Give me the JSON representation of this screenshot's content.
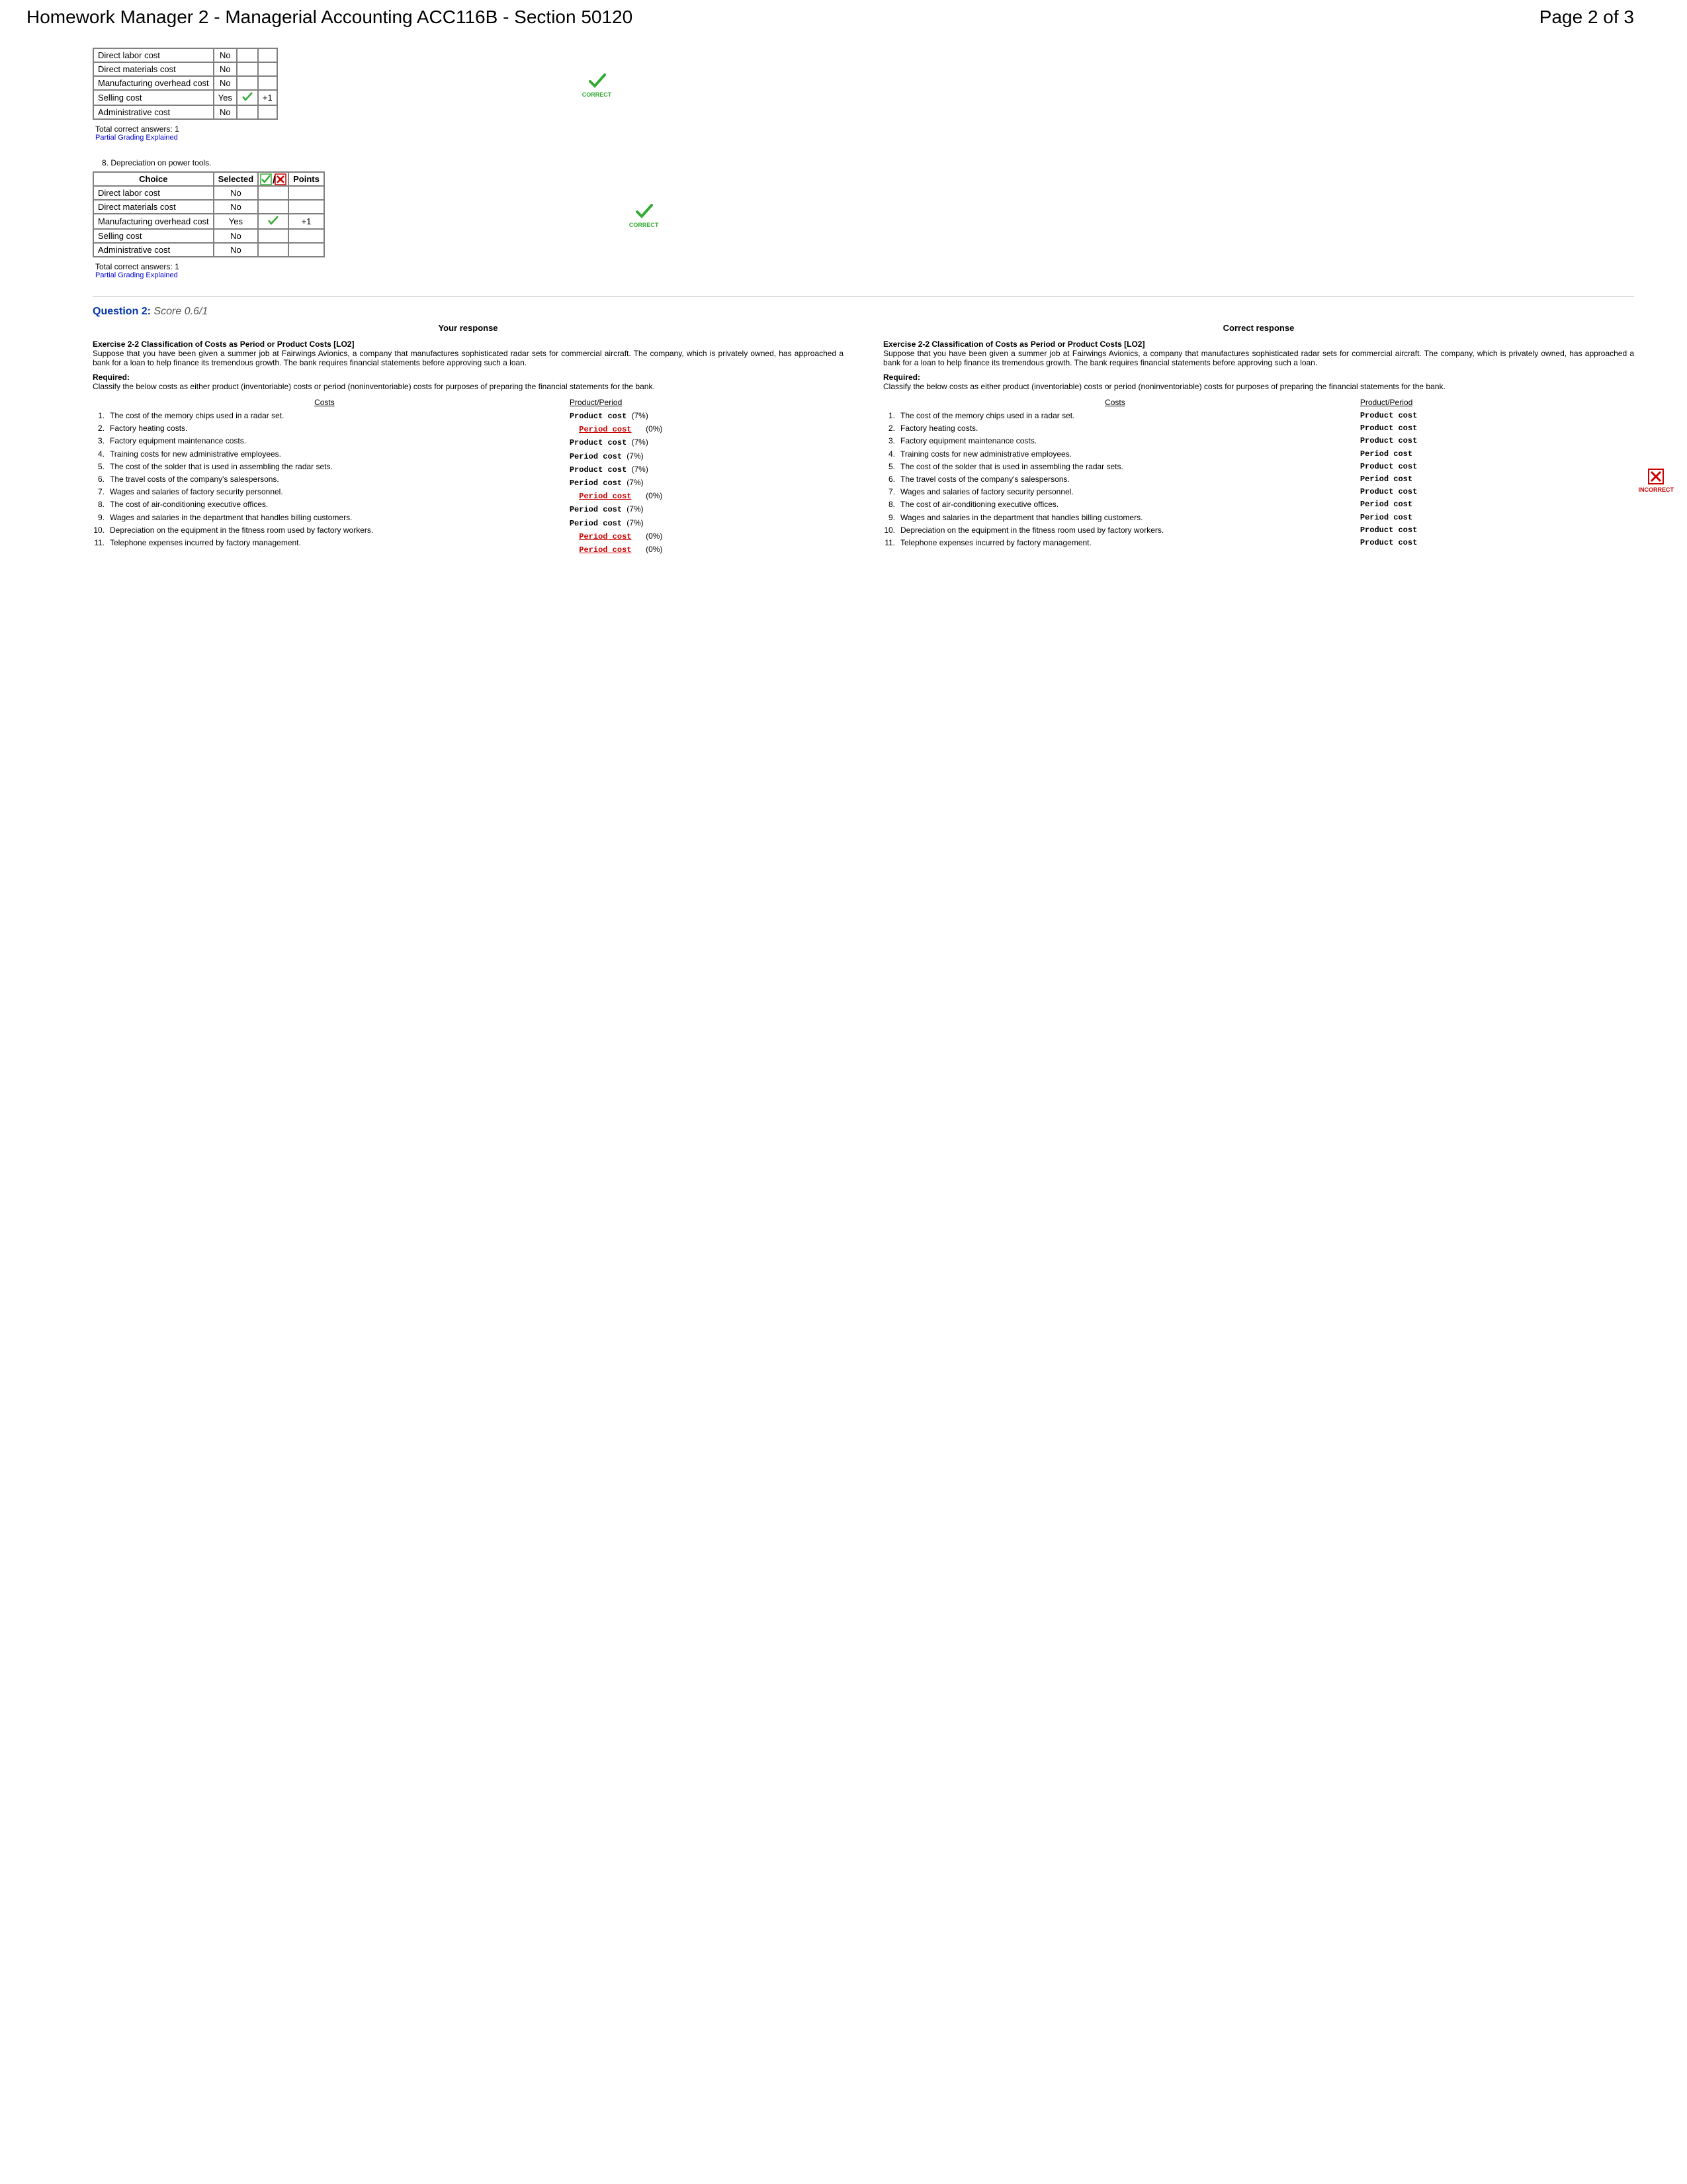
{
  "header": {
    "title": "Homework Manager 2 - Managerial Accounting ACC116B - Section 50120",
    "pagination": "Page 2 of 3"
  },
  "correct_label": "CORRECT",
  "incorrect_label": "INCORRECT",
  "partial_link": "Partial Grading Explained",
  "total_correct_prefix": "Total correct answers:",
  "table_headers": {
    "choice": "Choice",
    "selected": "Selected",
    "points": "Points"
  },
  "table7": {
    "rows": [
      {
        "label": "Direct labor cost",
        "sel": "No",
        "pts": ""
      },
      {
        "label": "Direct materials cost",
        "sel": "No",
        "pts": ""
      },
      {
        "label": "Manufacturing overhead cost",
        "sel": "No",
        "pts": ""
      },
      {
        "label": "Selling cost",
        "sel": "Yes",
        "pts": "+1",
        "check": true
      },
      {
        "label": "Administrative cost",
        "sel": "No",
        "pts": ""
      }
    ],
    "total": "1"
  },
  "q8_title": "8.   Depreciation on power tools.",
  "table8": {
    "rows": [
      {
        "label": "Direct labor cost",
        "sel": "No",
        "pts": ""
      },
      {
        "label": "Direct materials cost",
        "sel": "No",
        "pts": ""
      },
      {
        "label": "Manufacturing overhead cost",
        "sel": "Yes",
        "pts": "+1",
        "check": true
      },
      {
        "label": "Selling cost",
        "sel": "No",
        "pts": ""
      },
      {
        "label": "Administrative cost",
        "sel": "No",
        "pts": ""
      }
    ],
    "total": "1"
  },
  "q2": {
    "label": "Question 2:",
    "score": "Score 0.6/1",
    "your": "Your response",
    "correct": "Correct response",
    "ex": "Exercise 2-2 Classification of Costs as Period or Product Costs [LO2]",
    "para": "Suppose that you have been given a summer job at Fairwings Avionics, a company that manufactures sophisticated radar sets for commercial aircraft. The company, which is privately owned, has approached a bank for a loan to help finance its tremendous growth. The bank requires financial statements before approving such a loan.",
    "req": "Required:",
    "req_text": "Classify the below costs as either product (inventoriable) costs or period (noninventoriable) costs for purposes of preparing the financial statements for the bank.",
    "head_costs": "Costs",
    "head_pp": "Product/Period",
    "rows": [
      "The cost of the memory chips used in a radar set.",
      "Factory heating costs.",
      "Factory equipment maintenance costs.",
      "Training costs for new administrative employees.",
      "The cost of the solder that is used in assembling the radar sets.",
      "The travel costs of the company's salespersons.",
      "Wages and salaries of factory security personnel.",
      "The cost of air-conditioning executive offices.",
      "Wages and salaries in the department that handles billing customers.",
      "Depreciation on the equipment in the fitness room used by factory workers.",
      "Telephone expenses incurred by factory management."
    ],
    "your_answers": [
      {
        "t": "Product cost",
        "pct": "(7%)",
        "wrong": false
      },
      {
        "t": "Period cost",
        "pct": "(0%)",
        "wrong": true
      },
      {
        "t": "Product cost",
        "pct": "(7%)",
        "wrong": false
      },
      {
        "t": "Period cost",
        "pct": "(7%)",
        "wrong": false
      },
      {
        "t": "Product cost",
        "pct": "(7%)",
        "wrong": false
      },
      {
        "t": "Period cost",
        "pct": "(7%)",
        "wrong": false
      },
      {
        "t": "Period cost",
        "pct": "(0%)",
        "wrong": true
      },
      {
        "t": "Period cost",
        "pct": "(7%)",
        "wrong": false
      },
      {
        "t": "Period cost",
        "pct": "(7%)",
        "wrong": false
      },
      {
        "t": "Period cost",
        "pct": "(0%)",
        "wrong": true
      },
      {
        "t": "Period cost",
        "pct": "(0%)",
        "wrong": true
      }
    ],
    "correct_answers": [
      "Product cost",
      "Product cost",
      "Product cost",
      "Period cost",
      "Product cost",
      "Period cost",
      "Product cost",
      "Period cost",
      "Period cost",
      "Product cost",
      "Product cost"
    ]
  }
}
